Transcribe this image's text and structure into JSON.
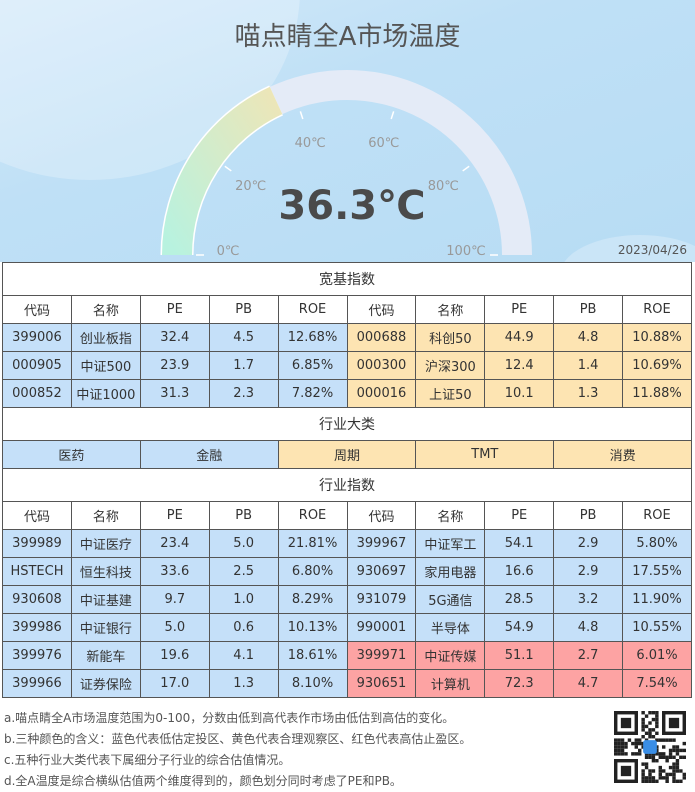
{
  "title": "喵点睛全A市场温度",
  "gauge": {
    "value": 36.3,
    "min": 0,
    "max": 100,
    "value_text": "36.3℃",
    "ticks": [
      "0℃",
      "20℃",
      "40℃",
      "60℃",
      "80℃",
      "100℃"
    ]
  },
  "date": "2023/04/26",
  "colors": {
    "blue": "#c5e0f9",
    "yellow": "#fde4b2",
    "red": "#fda3a3"
  },
  "broad": {
    "title": "宽基指数",
    "headers": [
      "代码",
      "名称",
      "PE",
      "PB",
      "ROE",
      "代码",
      "名称",
      "PE",
      "PB",
      "ROE"
    ],
    "rows": [
      {
        "cells": [
          "399006",
          "创业板指",
          "32.4",
          "4.5",
          "12.68%",
          "000688",
          "科创50",
          "44.9",
          "4.8",
          "10.88%"
        ],
        "left": "blue",
        "right": "yellow"
      },
      {
        "cells": [
          "000905",
          "中证500",
          "23.9",
          "1.7",
          "6.85%",
          "000300",
          "沪深300",
          "12.4",
          "1.4",
          "10.69%"
        ],
        "left": "blue",
        "right": "yellow"
      },
      {
        "cells": [
          "000852",
          "中证1000",
          "31.3",
          "2.3",
          "7.82%",
          "000016",
          "上证50",
          "10.1",
          "1.3",
          "11.88%"
        ],
        "left": "blue",
        "right": "yellow"
      }
    ]
  },
  "sectors": {
    "title": "行业大类",
    "items": [
      {
        "label": "医药",
        "color": "blue"
      },
      {
        "label": "金融",
        "color": "blue"
      },
      {
        "label": "周期",
        "color": "yellow"
      },
      {
        "label": "TMT",
        "color": "yellow"
      },
      {
        "label": "消费",
        "color": "yellow"
      }
    ]
  },
  "industry": {
    "title": "行业指数",
    "headers": [
      "代码",
      "名称",
      "PE",
      "PB",
      "ROE",
      "代码",
      "名称",
      "PE",
      "PB",
      "ROE"
    ],
    "rows": [
      {
        "cells": [
          "399989",
          "中证医疗",
          "23.4",
          "5.0",
          "21.81%",
          "399967",
          "中证军工",
          "54.1",
          "2.9",
          "5.80%"
        ],
        "left": "blue",
        "right": "blue"
      },
      {
        "cells": [
          "HSTECH",
          "恒生科技",
          "33.6",
          "2.5",
          "6.80%",
          "930697",
          "家用电器",
          "16.6",
          "2.9",
          "17.55%"
        ],
        "left": "blue",
        "right": "blue"
      },
      {
        "cells": [
          "930608",
          "中证基建",
          "9.7",
          "1.0",
          "8.29%",
          "931079",
          "5G通信",
          "28.5",
          "3.2",
          "11.90%"
        ],
        "left": "blue",
        "right": "blue"
      },
      {
        "cells": [
          "399986",
          "中证银行",
          "5.0",
          "0.6",
          "10.13%",
          "990001",
          "半导体",
          "54.9",
          "4.8",
          "10.55%"
        ],
        "left": "blue",
        "right": "blue"
      },
      {
        "cells": [
          "399976",
          "新能车",
          "19.6",
          "4.1",
          "18.61%",
          "399971",
          "中证传媒",
          "51.1",
          "2.7",
          "6.01%"
        ],
        "left": "blue",
        "right": "red"
      },
      {
        "cells": [
          "399966",
          "证券保险",
          "17.0",
          "1.3",
          "8.10%",
          "930651",
          "计算机",
          "72.3",
          "4.7",
          "7.54%"
        ],
        "left": "blue",
        "right": "red"
      }
    ]
  },
  "notes": [
    "a.喵点睛全A市场温度范围为0-100，分数由低到高代表作市场由低估到高估的变化。",
    "b.三种颜色的含义：蓝色代表低估定投区、黄色代表合理观察区、红色代表高估止盈区。",
    "c.五种行业大类代表下属细分子行业的综合估值情况。",
    "d.全A温度是综合横纵估值两个维度得到的，颜色划分同时考虑了PE和PB。"
  ]
}
